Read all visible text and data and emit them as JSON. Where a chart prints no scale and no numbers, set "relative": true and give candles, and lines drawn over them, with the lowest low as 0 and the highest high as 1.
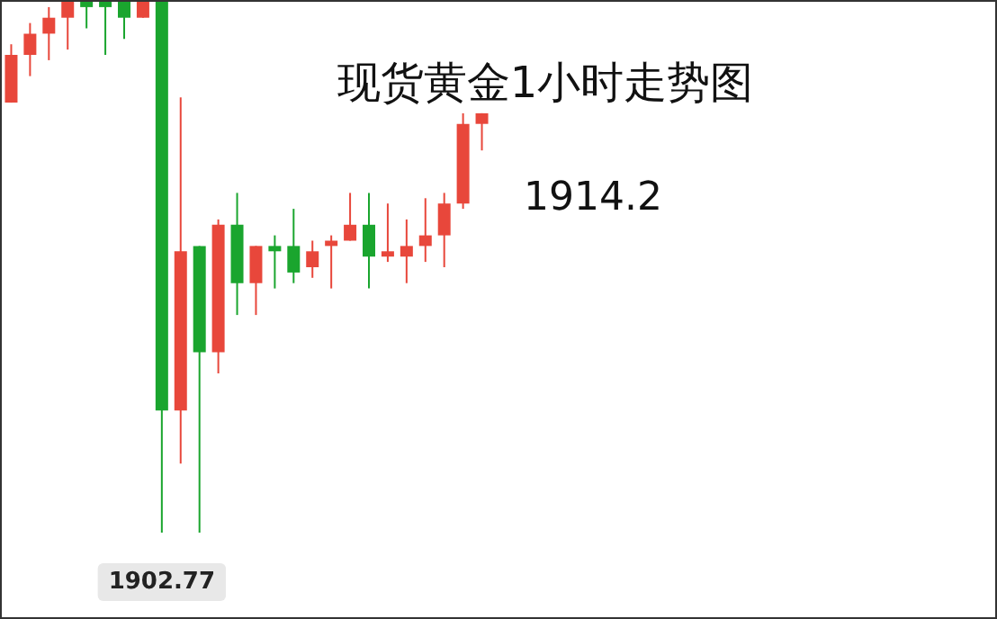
{
  "chart_data": {
    "type": "candlestick",
    "title": "现货黄金1小时走势图",
    "relative": true,
    "annotations": [
      "1914.2",
      "1902.77"
    ],
    "categories": [
      null,
      null,
      null,
      null,
      null,
      null,
      null,
      null,
      null,
      null,
      null,
      null,
      null,
      null,
      null,
      null,
      null,
      null,
      null,
      null,
      null,
      null,
      null,
      null,
      null,
      null
    ],
    "ohlc": [
      [
        0.81,
        0.92,
        0.81,
        0.9
      ],
      [
        0.9,
        0.96,
        0.86,
        0.94
      ],
      [
        0.94,
        0.99,
        0.89,
        0.97
      ],
      [
        0.97,
        1,
        0.91,
        1
      ],
      [
        1,
        1,
        0.95,
        0.99
      ],
      [
        1,
        1,
        0.9,
        0.99
      ],
      [
        1,
        1,
        0.93,
        0.97
      ],
      [
        0.97,
        1,
        0.97,
        1
      ],
      [
        1,
        1,
        0,
        0.23
      ],
      [
        0.23,
        0.82,
        0.13,
        0.53
      ],
      [
        0.54,
        0.54,
        0,
        0.34
      ],
      [
        0.34,
        0.59,
        0.3,
        0.58
      ],
      [
        0.58,
        0.64,
        0.41,
        0.47
      ],
      [
        0.47,
        0.54,
        0.41,
        0.54
      ],
      [
        0.54,
        0.56,
        0.46,
        0.53
      ],
      [
        0.54,
        0.61,
        0.47,
        0.49
      ],
      [
        0.5,
        0.55,
        0.48,
        0.53
      ],
      [
        0.54,
        0.56,
        0.46,
        0.55
      ],
      [
        0.55,
        0.64,
        0.55,
        0.58
      ],
      [
        0.58,
        0.64,
        0.46,
        0.52
      ],
      [
        0.52,
        0.62,
        0.51,
        0.53
      ],
      [
        0.52,
        0.59,
        0.47,
        0.54
      ],
      [
        0.54,
        0.63,
        0.51,
        0.56
      ],
      [
        0.56,
        0.64,
        0.5,
        0.62
      ],
      [
        0.62,
        0.79,
        0.61,
        0.77
      ],
      [
        0.77,
        0.79,
        0.72,
        0.79
      ]
    ],
    "colors": [
      "#e8473b",
      "#e8473b",
      "#e8473b",
      "#e8473b",
      "#1aa52e",
      "#1aa52e",
      "#1aa52e",
      "#e8473b",
      "#1aa52e",
      "#e8473b",
      "#1aa52e",
      "#e8473b",
      "#1aa52e",
      "#e8473b",
      "#1aa52e",
      "#1aa52e",
      "#e8473b",
      "#e8473b",
      "#e8473b",
      "#1aa52e",
      "#e8473b",
      "#e8473b",
      "#e8473b",
      "#e8473b",
      "#e8473b",
      "#e8473b"
    ]
  }
}
